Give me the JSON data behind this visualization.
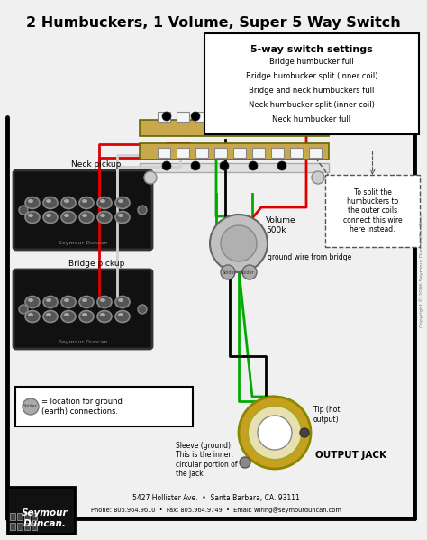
{
  "title": "2 Humbuckers, 1 Volume, Super 5 Way Switch",
  "switch_box_title": "5-way switch settings",
  "switch_settings": [
    "Bridge humbucker full",
    "Bridge humbucker split (inner coil)",
    "Bridge and neck humbuckers full",
    "Neck humbucker split (inner coil)",
    "Neck humbucker full"
  ],
  "neck_label": "Neck pickup",
  "bridge_label": "Bridge pickup",
  "volume_label": "Volume\n500k",
  "ground_label": "ground wire from bridge",
  "solder_label": "= location for ground\n(earth) connections.",
  "output_jack_label": "OUTPUT JACK",
  "tip_label": "Tip (hot\noutput)",
  "sleeve_label": "Sleeve (ground).\nThis is the inner,\ncircular portion of\nthe jack",
  "to_split_label": "To split the\nhumbuckers to\nthe outer coils\nconnect this wire\nhere instead.",
  "footer_line1": "5427 Hollister Ave.  •  Santa Barbara, CA. 93111",
  "footer_line2": "Phone: 805.964.9610  •  Fax: 805.964.9749  •  Email: wiring@seymourduncan.com",
  "copyright": "Copyright © 2006 Seymour Duncan/Basslines",
  "bg_color": "#f0f0f0",
  "pickup_fill": "#111111",
  "wire_red": "#dd0000",
  "wire_green": "#00aa00",
  "wire_white": "#e8e8e8",
  "wire_black": "#111111",
  "switch_bg": "#c8a84a",
  "switch_white_bg": "#f5f5f5",
  "seymour_bg": "#111111",
  "vol_gray": "#aaaaaa",
  "jack_gold": "#c8a020",
  "jack_cream": "#e8e0b0"
}
